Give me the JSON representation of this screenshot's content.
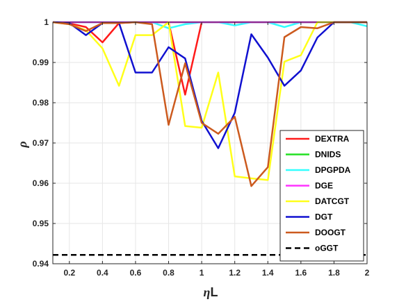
{
  "chart_data": {
    "type": "line",
    "title": "",
    "xlabel_symbol": "η",
    "xlabel_suffix": "L",
    "ylabel": "ρ",
    "xlim": [
      0.1,
      2
    ],
    "ylim": [
      0.94,
      1
    ],
    "xticks": [
      0.2,
      0.4,
      0.6,
      0.8,
      1,
      1.2,
      1.4,
      1.6,
      1.8,
      2
    ],
    "xtick_labels": [
      "0.2",
      "0.4",
      "0.6",
      "0.8",
      "1",
      "1.2",
      "1.4",
      "1.6",
      "1.8",
      "2"
    ],
    "yticks": [
      0.94,
      0.95,
      0.96,
      0.97,
      0.98,
      0.99,
      1
    ],
    "ytick_labels": [
      "0.94",
      "0.95",
      "0.96",
      "0.97",
      "0.98",
      "0.99",
      "1"
    ],
    "grid": true,
    "legend_position": "bottom-right",
    "x": [
      0.1,
      0.2,
      0.3,
      0.4,
      0.5,
      0.6,
      0.7,
      0.8,
      0.9,
      1.0,
      1.1,
      1.2,
      1.3,
      1.4,
      1.5,
      1.6,
      1.7,
      1.8,
      1.9,
      2.0
    ],
    "series": [
      {
        "name": "DEXTRA",
        "color": "#ff1a1a",
        "dashed": false,
        "values": [
          1.0,
          0.9997,
          0.9988,
          0.995,
          0.9998,
          1.0,
          1.0,
          1.0,
          0.982,
          1.0,
          1.0,
          1.0,
          1.0,
          1.0,
          1.0,
          1.0,
          1.0,
          1.0,
          1.0,
          1.0
        ]
      },
      {
        "name": "DNIDS",
        "color": "#22e022",
        "dashed": false,
        "values": [
          1.0,
          1.0,
          1.0,
          1.0,
          1.0,
          1.0,
          1.0,
          1.0,
          1.0,
          1.0,
          1.0,
          1.0,
          1.0,
          1.0,
          1.0,
          1.0,
          1.0,
          1.0,
          1.0,
          1.0
        ]
      },
      {
        "name": "DPGPDA",
        "color": "#33ffff",
        "dashed": false,
        "values": [
          1.0,
          1.0,
          1.0,
          1.0,
          1.0,
          1.0,
          1.0,
          0.9985,
          0.9995,
          1.0,
          1.0,
          0.9992,
          1.0,
          1.0,
          0.9988,
          1.0,
          1.0,
          1.0,
          1.0,
          0.999
        ]
      },
      {
        "name": "DGE",
        "color": "#ff33ff",
        "dashed": false,
        "values": [
          1.0,
          1.0,
          1.0,
          1.0,
          1.0,
          1.0,
          1.0,
          1.0,
          1.0,
          1.0,
          1.0,
          1.0,
          1.0,
          1.0,
          1.0,
          1.0,
          1.0,
          1.0,
          1.0,
          1.0
        ]
      },
      {
        "name": "DATCGT",
        "color": "#ffff1a",
        "dashed": false,
        "values": [
          1.0,
          0.9995,
          0.998,
          0.9935,
          0.9842,
          0.9968,
          0.9968,
          1.0,
          0.9742,
          0.9738,
          0.9875,
          0.9617,
          0.9612,
          0.9608,
          0.9902,
          0.9918,
          1.0,
          1.0,
          1.0,
          1.0
        ]
      },
      {
        "name": "DGT",
        "color": "#1010d0",
        "dashed": false,
        "values": [
          1.0,
          0.9998,
          0.9968,
          0.9998,
          0.9998,
          0.9875,
          0.9875,
          0.9938,
          0.991,
          0.9755,
          0.9687,
          0.9775,
          0.997,
          0.9912,
          0.9842,
          0.988,
          0.9962,
          1.0,
          1.0,
          1.0
        ]
      },
      {
        "name": "DOOGT",
        "color": "#cc5a1e",
        "dashed": false,
        "values": [
          1.0,
          0.9995,
          0.9978,
          0.9998,
          0.9998,
          1.0,
          0.9995,
          0.9745,
          0.9898,
          0.975,
          0.9723,
          0.9765,
          0.9593,
          0.964,
          0.9963,
          0.9988,
          0.9985,
          1.0,
          1.0,
          1.0
        ]
      },
      {
        "name": "oGGT",
        "color": "#000000",
        "dashed": true,
        "values": [
          0.9422,
          0.9422,
          0.9422,
          0.9422,
          0.9422,
          0.9422,
          0.9422,
          0.9422,
          0.9422,
          0.9422,
          0.9422,
          0.9422,
          0.9422,
          0.9422,
          0.9422,
          0.9422,
          0.9422,
          0.9422,
          0.9422,
          0.9422
        ]
      }
    ]
  }
}
